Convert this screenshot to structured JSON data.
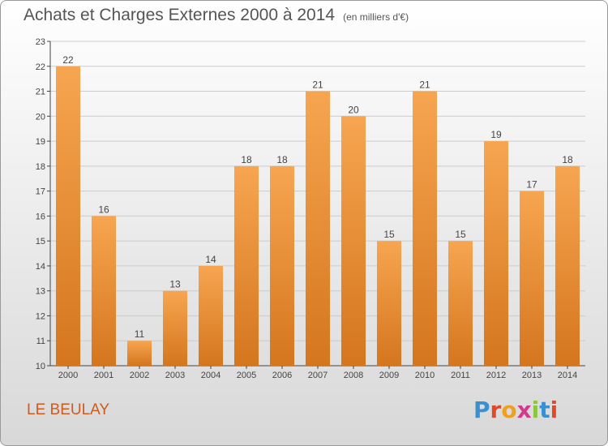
{
  "title": "Achats et Charges Externes 2000 à 2014",
  "unit": "(en milliers d'€)",
  "location": "LE BEULAY",
  "brand": "Proxiti",
  "colors": {
    "bar_top": "#f7a551",
    "bar_bottom": "#d4761e",
    "grid": "#cccccc",
    "label": "#d05a1e"
  },
  "chart_data": {
    "type": "bar",
    "categories": [
      "2000",
      "2001",
      "2002",
      "2003",
      "2004",
      "2005",
      "2006",
      "2007",
      "2008",
      "2009",
      "2010",
      "2011",
      "2012",
      "2013",
      "2014"
    ],
    "values": [
      22,
      16,
      11,
      13,
      14,
      18,
      18,
      21,
      20,
      15,
      21,
      15,
      19,
      17,
      18
    ],
    "title": "Achats et Charges Externes 2000 à 2014",
    "ylabel": "",
    "xlabel": "",
    "ylim": [
      10,
      23
    ],
    "yticks": [
      10,
      11,
      12,
      13,
      14,
      15,
      16,
      17,
      18,
      19,
      20,
      21,
      22,
      23
    ],
    "grid": true
  }
}
